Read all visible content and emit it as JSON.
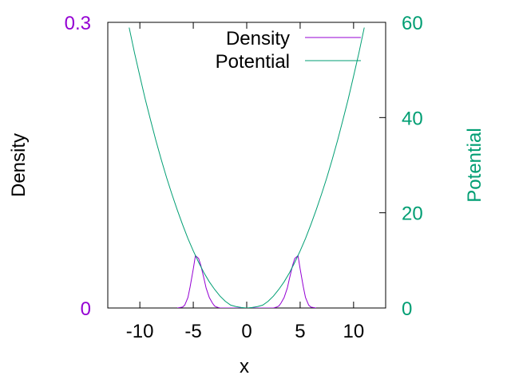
{
  "chart_data": {
    "type": "line",
    "xlabel": "x",
    "ylabel": "Density",
    "y2label": "Potential",
    "xlim": [
      -13,
      13
    ],
    "ylim": [
      0,
      0.3
    ],
    "y2lim": [
      0,
      60
    ],
    "x_ticks": [
      {
        "value": -10,
        "label": "-10"
      },
      {
        "value": -5,
        "label": "-5"
      },
      {
        "value": 0,
        "label": "0"
      },
      {
        "value": 5,
        "label": "5"
      },
      {
        "value": 10,
        "label": "10"
      }
    ],
    "y_ticks": [
      {
        "value": 0,
        "label": "0"
      },
      {
        "value": 0.3,
        "label": "0.3"
      }
    ],
    "y2_ticks": [
      {
        "value": 0,
        "label": "0"
      },
      {
        "value": 20,
        "label": "20"
      },
      {
        "value": 40,
        "label": "40"
      },
      {
        "value": 60,
        "label": "60"
      }
    ],
    "legend_position": "top-right",
    "colors": {
      "density": "#9400d3",
      "potential": "#009e73",
      "y_axis": "#9400d3",
      "y2_axis": "#009e73",
      "frame": "#000000"
    },
    "series": [
      {
        "name": "Density",
        "axis": "y",
        "x": [
          -6.5,
          -6.0,
          -5.8,
          -5.5,
          -5.3,
          -5.0,
          -4.8,
          -4.5,
          -4.3,
          -4.0,
          -3.8,
          -3.5,
          -3.2,
          -3.0,
          -2.8,
          -2.5,
          2.5,
          2.8,
          3.0,
          3.2,
          3.5,
          3.8,
          4.0,
          4.3,
          4.5,
          4.8,
          5.0,
          5.3,
          5.5,
          5.8,
          6.0,
          6.5
        ],
        "y": [
          0.0,
          0.001,
          0.003,
          0.011,
          0.022,
          0.041,
          0.055,
          0.052,
          0.045,
          0.031,
          0.021,
          0.011,
          0.005,
          0.002,
          0.001,
          0.0,
          0.0,
          0.001,
          0.002,
          0.005,
          0.011,
          0.021,
          0.031,
          0.045,
          0.052,
          0.055,
          0.041,
          0.022,
          0.011,
          0.003,
          0.001,
          0.0
        ]
      },
      {
        "name": "Potential",
        "axis": "y2",
        "x": [
          -11.0,
          -10.5,
          -10.0,
          -9.5,
          -9.0,
          -8.5,
          -8.0,
          -7.5,
          -7.0,
          -6.5,
          -6.0,
          -5.5,
          -5.0,
          -4.5,
          -4.0,
          -3.5,
          -3.0,
          -2.5,
          -2.0,
          -1.5,
          -1.0,
          -0.5,
          0.0,
          0.5,
          1.0,
          1.5,
          2.0,
          2.5,
          3.0,
          3.5,
          4.0,
          4.5,
          5.0,
          5.5,
          6.0,
          6.5,
          7.0,
          7.5,
          8.0,
          8.5,
          9.0,
          9.5,
          10.0,
          10.5,
          11.0
        ],
        "y": [
          58.9,
          53.6,
          48.7,
          43.9,
          39.5,
          35.2,
          31.2,
          27.4,
          23.9,
          20.6,
          17.5,
          14.6,
          12.0,
          9.6,
          7.4,
          5.5,
          3.9,
          2.5,
          1.4,
          0.6,
          0.3,
          0.1,
          0.0,
          0.1,
          0.3,
          0.6,
          1.4,
          2.5,
          3.9,
          5.5,
          7.4,
          9.6,
          12.0,
          14.6,
          17.5,
          20.6,
          23.9,
          27.4,
          31.2,
          35.2,
          39.5,
          43.9,
          48.7,
          53.6,
          58.9
        ]
      }
    ]
  }
}
